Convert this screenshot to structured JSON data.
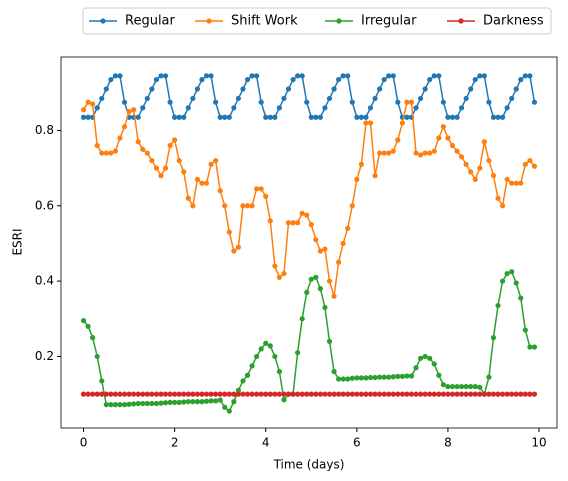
{
  "chart_data": {
    "type": "line",
    "xlabel": "Time (days)",
    "ylabel": "ESRI",
    "x": [
      0,
      0.1,
      0.2,
      0.3,
      0.4,
      0.5,
      0.6,
      0.7,
      0.8,
      0.9,
      1,
      1.1,
      1.2,
      1.3,
      1.4,
      1.5,
      1.6,
      1.7,
      1.8,
      1.9,
      2,
      2.1,
      2.2,
      2.3,
      2.4,
      2.5,
      2.6,
      2.7,
      2.8,
      2.9,
      3,
      3.1,
      3.2,
      3.3,
      3.4,
      3.5,
      3.6,
      3.7,
      3.8,
      3.9,
      4,
      4.1,
      4.2,
      4.3,
      4.4,
      4.5,
      4.6,
      4.7,
      4.8,
      4.9,
      5,
      5.1,
      5.2,
      5.3,
      5.4,
      5.5,
      5.6,
      5.7,
      5.8,
      5.9,
      6,
      6.1,
      6.2,
      6.3,
      6.4,
      6.5,
      6.6,
      6.7,
      6.8,
      6.9,
      7,
      7.1,
      7.2,
      7.3,
      7.4,
      7.5,
      7.6,
      7.7,
      7.8,
      7.9,
      8,
      8.1,
      8.2,
      8.3,
      8.4,
      8.5,
      8.6,
      8.7,
      8.8,
      8.9,
      9,
      9.1,
      9.2,
      9.3,
      9.4,
      9.5,
      9.6,
      9.7,
      9.8,
      9.9
    ],
    "series": [
      {
        "name": "Regular",
        "color": "#1f77b4",
        "values": [
          0.835,
          0.835,
          0.835,
          0.86,
          0.885,
          0.91,
          0.935,
          0.945,
          0.945,
          0.875,
          0.835,
          0.835,
          0.835,
          0.86,
          0.885,
          0.91,
          0.935,
          0.945,
          0.945,
          0.875,
          0.835,
          0.835,
          0.835,
          0.86,
          0.885,
          0.91,
          0.935,
          0.945,
          0.945,
          0.875,
          0.835,
          0.835,
          0.835,
          0.86,
          0.885,
          0.91,
          0.935,
          0.945,
          0.945,
          0.875,
          0.835,
          0.835,
          0.835,
          0.86,
          0.885,
          0.91,
          0.935,
          0.945,
          0.945,
          0.875,
          0.835,
          0.835,
          0.835,
          0.86,
          0.885,
          0.91,
          0.935,
          0.945,
          0.945,
          0.875,
          0.835,
          0.835,
          0.835,
          0.86,
          0.885,
          0.91,
          0.935,
          0.945,
          0.945,
          0.875,
          0.835,
          0.835,
          0.835,
          0.86,
          0.885,
          0.91,
          0.935,
          0.945,
          0.945,
          0.875,
          0.835,
          0.835,
          0.835,
          0.86,
          0.885,
          0.91,
          0.935,
          0.945,
          0.945,
          0.875,
          0.835,
          0.835,
          0.835,
          0.86,
          0.885,
          0.91,
          0.935,
          0.945,
          0.945,
          0.875
        ]
      },
      {
        "name": "Shift Work",
        "color": "#ff7f0e",
        "values": [
          0.855,
          0.875,
          0.87,
          0.76,
          0.74,
          0.74,
          0.74,
          0.745,
          0.78,
          0.81,
          0.85,
          0.855,
          0.77,
          0.75,
          0.74,
          0.72,
          0.7,
          0.68,
          0.7,
          0.76,
          0.775,
          0.72,
          0.69,
          0.62,
          0.6,
          0.67,
          0.66,
          0.66,
          0.71,
          0.72,
          0.64,
          0.6,
          0.53,
          0.48,
          0.49,
          0.6,
          0.6,
          0.6,
          0.645,
          0.645,
          0.625,
          0.56,
          0.44,
          0.41,
          0.42,
          0.555,
          0.555,
          0.555,
          0.58,
          0.575,
          0.55,
          0.51,
          0.48,
          0.485,
          0.4,
          0.36,
          0.45,
          0.5,
          0.54,
          0.6,
          0.67,
          0.71,
          0.82,
          0.82,
          0.68,
          0.74,
          0.74,
          0.74,
          0.745,
          0.775,
          0.82,
          0.875,
          0.875,
          0.74,
          0.735,
          0.74,
          0.74,
          0.745,
          0.78,
          0.81,
          0.78,
          0.76,
          0.745,
          0.73,
          0.71,
          0.69,
          0.67,
          0.7,
          0.77,
          0.72,
          0.68,
          0.62,
          0.6,
          0.67,
          0.66,
          0.66,
          0.66,
          0.71,
          0.72,
          0.705
        ]
      },
      {
        "name": "Irregular",
        "color": "#2ca02c",
        "values": [
          0.295,
          0.28,
          0.25,
          0.2,
          0.135,
          0.072,
          0.072,
          0.072,
          0.072,
          0.072,
          0.073,
          0.074,
          0.075,
          0.075,
          0.075,
          0.075,
          0.075,
          0.076,
          0.077,
          0.078,
          0.078,
          0.078,
          0.079,
          0.08,
          0.08,
          0.08,
          0.08,
          0.081,
          0.082,
          0.082,
          0.084,
          0.065,
          0.055,
          0.08,
          0.11,
          0.135,
          0.15,
          0.175,
          0.2,
          0.22,
          0.235,
          0.228,
          0.2,
          0.16,
          0.085,
          0.1,
          0.1,
          0.21,
          0.3,
          0.37,
          0.405,
          0.41,
          0.38,
          0.33,
          0.24,
          0.16,
          0.14,
          0.14,
          0.14,
          0.142,
          0.143,
          0.143,
          0.143,
          0.144,
          0.144,
          0.145,
          0.145,
          0.145,
          0.146,
          0.147,
          0.147,
          0.148,
          0.148,
          0.17,
          0.195,
          0.2,
          0.195,
          0.18,
          0.15,
          0.125,
          0.12,
          0.12,
          0.12,
          0.12,
          0.12,
          0.12,
          0.12,
          0.118,
          0.1,
          0.145,
          0.25,
          0.335,
          0.4,
          0.42,
          0.425,
          0.395,
          0.355,
          0.27,
          0.225,
          0.225
        ]
      },
      {
        "name": "Darkness",
        "color": "#d62728",
        "values": [
          0.1,
          0.1,
          0.1,
          0.1,
          0.1,
          0.1,
          0.1,
          0.1,
          0.1,
          0.1,
          0.1,
          0.1,
          0.1,
          0.1,
          0.1,
          0.1,
          0.1,
          0.1,
          0.1,
          0.1,
          0.1,
          0.1,
          0.1,
          0.1,
          0.1,
          0.1,
          0.1,
          0.1,
          0.1,
          0.1,
          0.1,
          0.1,
          0.1,
          0.1,
          0.1,
          0.1,
          0.1,
          0.1,
          0.1,
          0.1,
          0.1,
          0.1,
          0.1,
          0.1,
          0.1,
          0.1,
          0.1,
          0.1,
          0.1,
          0.1,
          0.1,
          0.1,
          0.1,
          0.1,
          0.1,
          0.1,
          0.1,
          0.1,
          0.1,
          0.1,
          0.1,
          0.1,
          0.1,
          0.1,
          0.1,
          0.1,
          0.1,
          0.1,
          0.1,
          0.1,
          0.1,
          0.1,
          0.1,
          0.1,
          0.1,
          0.1,
          0.1,
          0.1,
          0.1,
          0.1,
          0.1,
          0.1,
          0.1,
          0.1,
          0.1,
          0.1,
          0.1,
          0.1,
          0.1,
          0.1,
          0.1,
          0.1,
          0.1,
          0.1,
          0.1,
          0.1,
          0.1,
          0.1,
          0.1,
          0.1
        ]
      }
    ],
    "xlim": [
      -0.495,
      10.395
    ],
    "xticks": [
      0,
      2,
      4,
      6,
      8,
      10
    ],
    "ylim": [
      0.01,
      0.995
    ],
    "yticks": [
      0.2,
      0.4,
      0.6,
      0.8
    ],
    "legend": "top",
    "grid": false
  }
}
